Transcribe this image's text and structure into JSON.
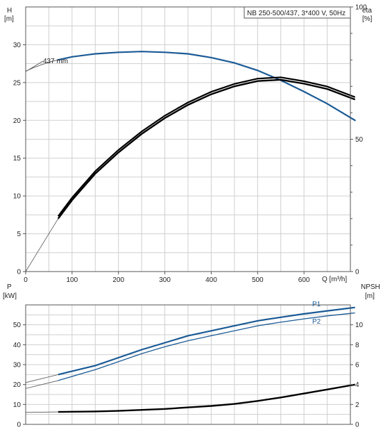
{
  "chart_data": [
    {
      "type": "line",
      "legend_box": "NB 250-500/437, 3*400 V, 50Hz",
      "annotation": "437 mm",
      "xlabel": "Q [m³/h]",
      "x_ticks": [
        "0",
        "100",
        "200",
        "300",
        "400",
        "500",
        "600"
      ],
      "xlim": [
        0,
        700
      ],
      "left_axis": {
        "label": "H",
        "unit": "[m]",
        "ticks": [
          "0",
          "5",
          "10",
          "15",
          "20",
          "25",
          "30"
        ],
        "ylim": [
          0,
          35
        ]
      },
      "right_axis": {
        "label": "eta",
        "unit": "[%]",
        "ticks": [
          "0",
          "50",
          "100"
        ],
        "ylim": [
          0,
          100
        ]
      },
      "grid": true,
      "series": [
        {
          "name": "H",
          "color": "#1a5a96",
          "x": [
            70,
            100,
            150,
            200,
            250,
            300,
            350,
            400,
            450,
            500,
            550,
            600,
            650,
            710
          ],
          "y": [
            28.0,
            28.4,
            28.8,
            29.0,
            29.1,
            29.0,
            28.8,
            28.3,
            27.6,
            26.6,
            25.3,
            23.8,
            22.2,
            20.0
          ]
        },
        {
          "name": "eta",
          "color": "#000000",
          "x": [
            70,
            100,
            150,
            200,
            250,
            300,
            350,
            400,
            450,
            500,
            550,
            600,
            650,
            710
          ],
          "y": [
            20,
            27,
            37,
            45,
            52,
            58,
            63,
            67,
            70,
            72,
            72.5,
            71,
            69,
            65
          ]
        }
      ]
    },
    {
      "type": "line",
      "xlim": [
        0,
        700
      ],
      "x_ticks": [],
      "left_axis": {
        "label": "P",
        "unit": "[kW]",
        "ticks": [
          "0",
          "10",
          "20",
          "30",
          "40",
          "50"
        ],
        "ylim": [
          0,
          60
        ]
      },
      "right_axis": {
        "label": "NPSH",
        "unit": "[m]",
        "ticks": [
          "0",
          "2",
          "4",
          "6",
          "8",
          "10"
        ],
        "ylim": [
          0,
          12
        ]
      },
      "grid": true,
      "series": [
        {
          "name": "P1",
          "color": "#1a5a96",
          "x": [
            70,
            150,
            200,
            250,
            300,
            350,
            400,
            450,
            500,
            550,
            600,
            650,
            710
          ],
          "y": [
            25.0,
            29.5,
            33.5,
            37.5,
            41.0,
            44.5,
            47.0,
            49.5,
            52.0,
            53.8,
            55.5,
            57.0,
            58.7
          ]
        },
        {
          "name": "P2",
          "color": "#1a5a96",
          "x": [
            70,
            150,
            200,
            250,
            300,
            350,
            400,
            450,
            500,
            550,
            600,
            650,
            710
          ],
          "y": [
            22.0,
            27.5,
            31.5,
            35.5,
            39.0,
            42.0,
            44.5,
            47.0,
            49.5,
            51.3,
            53.0,
            54.5,
            56.0
          ]
        },
        {
          "name": "NPSH",
          "color": "#000000",
          "x": [
            70,
            150,
            200,
            250,
            300,
            350,
            400,
            450,
            500,
            550,
            600,
            650,
            710
          ],
          "y": [
            1.25,
            1.3,
            1.35,
            1.45,
            1.55,
            1.7,
            1.85,
            2.05,
            2.35,
            2.7,
            3.1,
            3.5,
            4.0
          ]
        }
      ]
    }
  ]
}
